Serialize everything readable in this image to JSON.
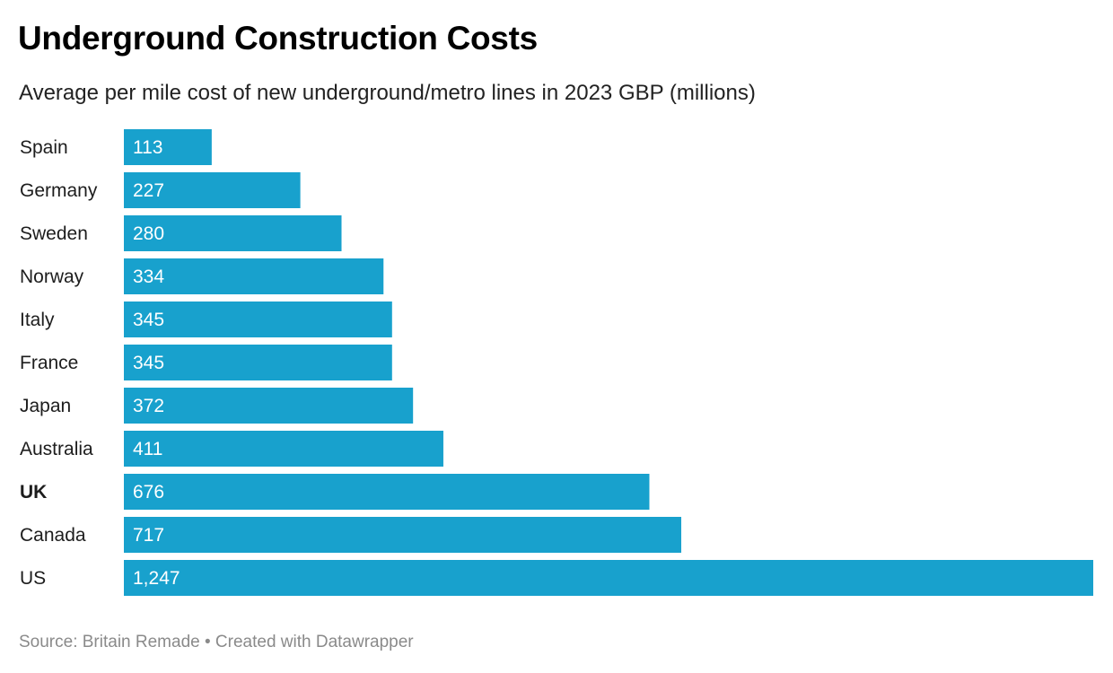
{
  "chart_data": {
    "type": "bar",
    "orientation": "horizontal",
    "title": "Underground Construction Costs",
    "subtitle": "Average per mile cost of new underground/metro lines in 2023 GBP (millions)",
    "categories": [
      "Spain",
      "Germany",
      "Sweden",
      "Norway",
      "Italy",
      "France",
      "Japan",
      "Australia",
      "UK",
      "Canada",
      "US"
    ],
    "values": [
      113,
      227,
      280,
      334,
      345,
      345,
      372,
      411,
      676,
      717,
      1247
    ],
    "value_labels": [
      "113",
      "227",
      "280",
      "334",
      "345",
      "345",
      "372",
      "411",
      "676",
      "717",
      "1,247"
    ],
    "highlighted_category": "UK",
    "xlim": [
      0,
      1247
    ],
    "grid": false,
    "bar_color": "#18a1cd",
    "source": "Source: Britain Remade • Created with Datawrapper"
  }
}
